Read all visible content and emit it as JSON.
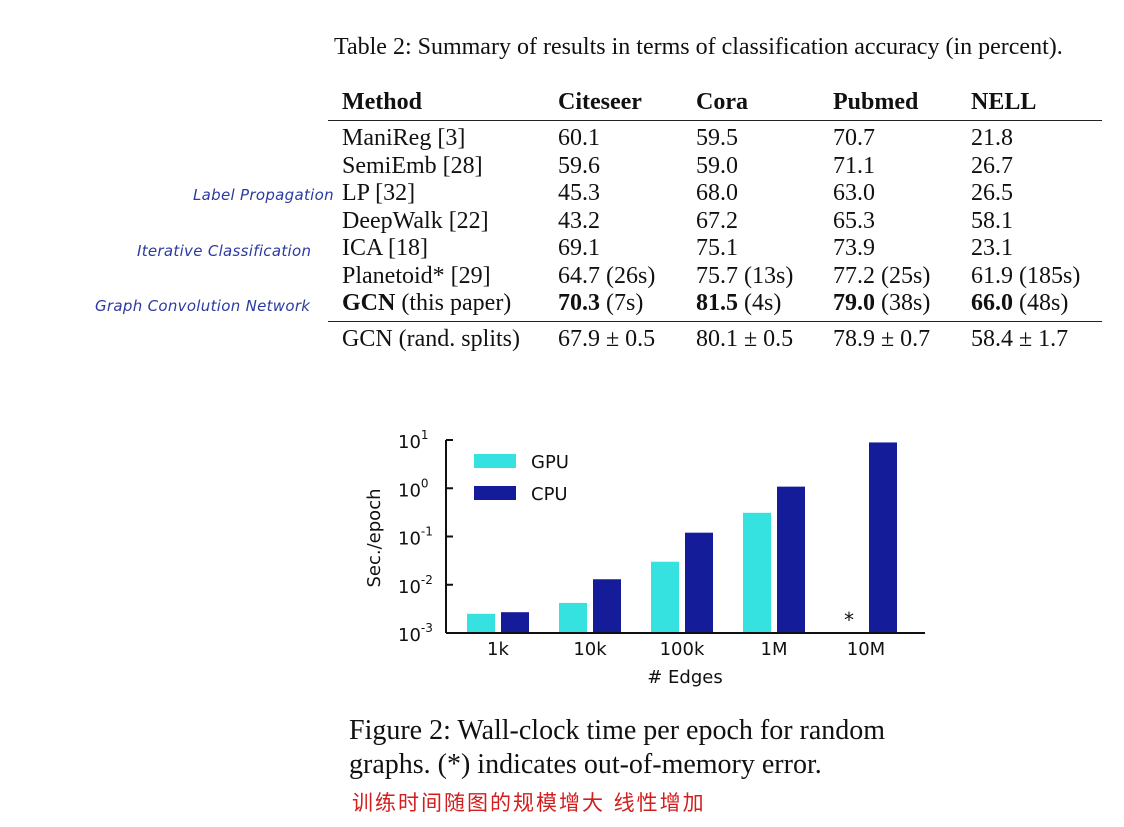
{
  "table": {
    "caption": "Table 2: Summary of results in terms of classification accuracy (in percent).",
    "headers": [
      "Method",
      "Citeseer",
      "Cora",
      "Pubmed",
      "NELL"
    ],
    "rows": [
      {
        "method": "ManiReg [3]",
        "cells": [
          "60.1",
          "59.5",
          "70.7",
          "21.8"
        ]
      },
      {
        "method": "SemiEmb [28]",
        "cells": [
          "59.6",
          "59.0",
          "71.1",
          "26.7"
        ]
      },
      {
        "method": "LP [32]",
        "cells": [
          "45.3",
          "68.0",
          "63.0",
          "26.5"
        ]
      },
      {
        "method": "DeepWalk [22]",
        "cells": [
          "43.2",
          "67.2",
          "65.3",
          "58.1"
        ]
      },
      {
        "method": "ICA [18]",
        "cells": [
          "69.1",
          "75.1",
          "73.9",
          "23.1"
        ]
      },
      {
        "method": "Planetoid* [29]",
        "cells": [
          "64.7 (26s)",
          "75.7 (13s)",
          "77.2 (25s)",
          "61.9 (185s)"
        ]
      }
    ],
    "gcn_row": {
      "method_bold": "GCN",
      "method_rest": " (this paper)",
      "cells": [
        {
          "bold": "70.3",
          "rest": " (7s)"
        },
        {
          "bold": "81.5",
          "rest": " (4s)"
        },
        {
          "bold": "79.0",
          "rest": " (38s)"
        },
        {
          "bold": "66.0",
          "rest": " (48s)"
        }
      ]
    },
    "footer_row": {
      "method": "GCN (rand. splits)",
      "cells": [
        "67.9 ± 0.5",
        "80.1 ± 0.5",
        "78.9 ± 0.7",
        "58.4 ± 1.7"
      ]
    }
  },
  "annotations": {
    "label_propagation": "Label Propagation",
    "iterative_classification": "Iterative Classification",
    "gcn": "Graph Convolution Network",
    "chinese_note": "训练时间随图的规模增大 线性增加"
  },
  "chart_data": {
    "type": "bar",
    "categories": [
      "1k",
      "10k",
      "100k",
      "1M",
      "10M"
    ],
    "series": [
      {
        "name": "GPU",
        "color": "#36e2e0",
        "values": [
          0.0025,
          0.0042,
          0.03,
          0.31,
          null
        ]
      },
      {
        "name": "CPU",
        "color": "#141c9a",
        "values": [
          0.0027,
          0.013,
          0.12,
          1.08,
          8.9
        ]
      }
    ],
    "scale": "log",
    "ylim": [
      0.001,
      10
    ],
    "y_ticks": [
      {
        "value": 10,
        "base": "10",
        "exp": "1"
      },
      {
        "value": 1,
        "base": "10",
        "exp": "0"
      },
      {
        "value": 0.1,
        "base": "10",
        "exp": "-1"
      },
      {
        "value": 0.01,
        "base": "10",
        "exp": "-2"
      },
      {
        "value": 0.001,
        "base": "10",
        "exp": "-3"
      }
    ],
    "xlabel": "# Edges",
    "ylabel": "Sec./epoch",
    "oom_marker": "*",
    "legend_position": "top-left"
  },
  "figure_caption": {
    "line1": "Figure 2:  Wall-clock time per epoch for random",
    "line2": "graphs. (*) indicates out-of-memory error."
  }
}
